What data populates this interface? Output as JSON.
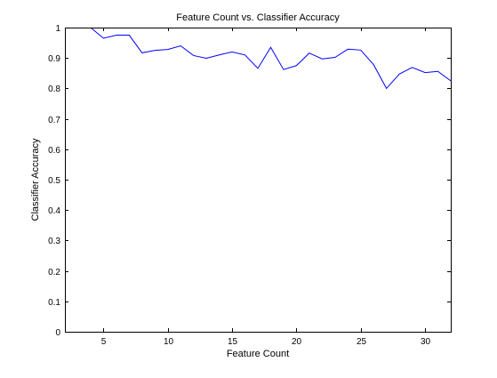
{
  "chart_data": {
    "type": "line",
    "title": "Feature Count vs. Classifier Accuracy",
    "xlabel": "Feature Count",
    "ylabel": "Classifier Accuracy",
    "xlim": [
      2,
      32
    ],
    "ylim": [
      0,
      1
    ],
    "xticks": [
      5,
      10,
      15,
      20,
      25,
      30
    ],
    "yticks": [
      0,
      0.1,
      0.2,
      0.3,
      0.4,
      0.5,
      0.6,
      0.7,
      0.8,
      0.9,
      1
    ],
    "grid": false,
    "series": [
      {
        "color": "#0000ff",
        "x": [
          4,
          5,
          6,
          7,
          8,
          9,
          10,
          11,
          12,
          13,
          14,
          15,
          16,
          17,
          18,
          19,
          20,
          21,
          22,
          23,
          24,
          25,
          26,
          27,
          28,
          29,
          30,
          31,
          32
        ],
        "y": [
          1.0,
          0.965,
          0.975,
          0.975,
          0.917,
          0.925,
          0.928,
          0.94,
          0.908,
          0.899,
          0.91,
          0.92,
          0.91,
          0.866,
          0.935,
          0.862,
          0.875,
          0.916,
          0.897,
          0.902,
          0.929,
          0.926,
          0.878,
          0.8,
          0.847,
          0.869,
          0.852,
          0.856,
          0.825
        ]
      }
    ]
  }
}
